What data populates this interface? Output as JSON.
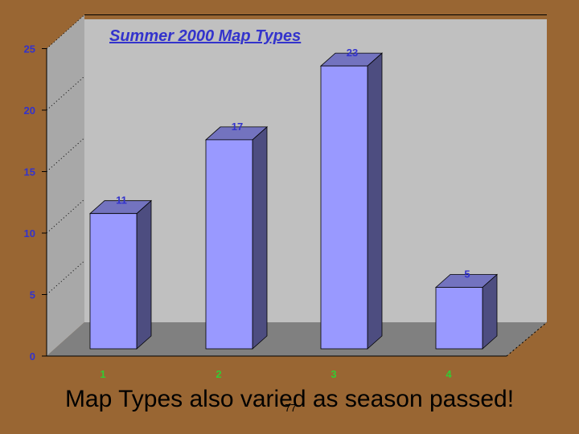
{
  "chart_data": {
    "type": "bar",
    "title": "Summer 2000 Map Types",
    "categories": [
      "1",
      "2",
      "3",
      "4"
    ],
    "values": [
      11,
      17,
      23,
      5
    ],
    "data_labels": [
      "11",
      "17",
      "23",
      "5"
    ],
    "y_ticks": [
      "0",
      "5",
      "10",
      "15",
      "20",
      "25"
    ],
    "ylim": [
      0,
      25
    ],
    "xlabel": "",
    "ylabel": "",
    "grid": false,
    "colors": {
      "bar_front": "#9999ff",
      "bar_side": "#4d4d80",
      "bar_top": "#7373bf",
      "wall": "#c0c0c0",
      "floor": "#808080",
      "tick_label": "#3333cc",
      "category_label": "#33cc33",
      "background": "#996633"
    }
  },
  "slide": {
    "caption": "Map Types also varied as season passed!",
    "page_number": "77"
  }
}
